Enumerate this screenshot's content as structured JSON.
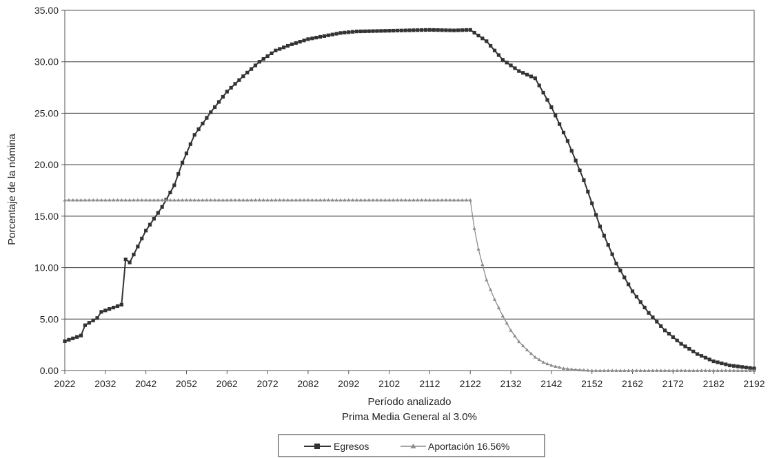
{
  "chart_data": {
    "type": "line",
    "xlabel": "Período analizado",
    "subtitle": "Prima Media General al 3.0%",
    "ylabel": "Porcentaje de la nómina",
    "xlim": [
      2022,
      2192
    ],
    "ylim": [
      0,
      35
    ],
    "x_ticks": [
      "2022",
      "2032",
      "2042",
      "2052",
      "2062",
      "2072",
      "2082",
      "2092",
      "2102",
      "2112",
      "2122",
      "2132",
      "2142",
      "2152",
      "2162",
      "2172",
      "2182",
      "2192"
    ],
    "y_ticks": [
      "0.00",
      "5.00",
      "10.00",
      "15.00",
      "20.00",
      "25.00",
      "30.00",
      "35.00"
    ],
    "grid": "horizontal",
    "legend_position": "bottom-center",
    "series": [
      {
        "name": "Egresos",
        "color": "#333333",
        "marker": "square",
        "points": [
          [
            2022,
            2.85
          ],
          [
            2026,
            3.4
          ],
          [
            2027,
            4.4
          ],
          [
            2030,
            5.1
          ],
          [
            2031,
            5.7
          ],
          [
            2036,
            6.4
          ],
          [
            2037,
            10.8
          ],
          [
            2038,
            10.5
          ],
          [
            2042,
            13.6
          ],
          [
            2046,
            15.9
          ],
          [
            2049,
            18.0
          ],
          [
            2051,
            20.2
          ],
          [
            2054,
            22.9
          ],
          [
            2058,
            25.1
          ],
          [
            2062,
            27.1
          ],
          [
            2066,
            28.6
          ],
          [
            2070,
            30.0
          ],
          [
            2074,
            31.1
          ],
          [
            2078,
            31.7
          ],
          [
            2082,
            32.2
          ],
          [
            2086,
            32.5
          ],
          [
            2090,
            32.8
          ],
          [
            2094,
            32.95
          ],
          [
            2100,
            33.0
          ],
          [
            2106,
            33.05
          ],
          [
            2112,
            33.1
          ],
          [
            2118,
            33.05
          ],
          [
            2122,
            33.1
          ],
          [
            2126,
            32.0
          ],
          [
            2130,
            30.2
          ],
          [
            2134,
            29.1
          ],
          [
            2138,
            28.4
          ],
          [
            2142,
            25.6
          ],
          [
            2146,
            22.3
          ],
          [
            2150,
            18.5
          ],
          [
            2154,
            14.0
          ],
          [
            2158,
            10.4
          ],
          [
            2162,
            7.7
          ],
          [
            2166,
            5.6
          ],
          [
            2170,
            3.9
          ],
          [
            2174,
            2.6
          ],
          [
            2178,
            1.6
          ],
          [
            2182,
            0.9
          ],
          [
            2186,
            0.5
          ],
          [
            2190,
            0.3
          ],
          [
            2192,
            0.2
          ]
        ]
      },
      {
        "name": "Aportación 16.56%",
        "color": "#8c8c8c",
        "marker": "triangle",
        "points": [
          [
            2022,
            16.56
          ],
          [
            2122,
            16.56
          ],
          [
            2123,
            13.8
          ],
          [
            2124,
            11.8
          ],
          [
            2125,
            10.3
          ],
          [
            2126,
            8.8
          ],
          [
            2128,
            6.9
          ],
          [
            2130,
            5.3
          ],
          [
            2132,
            3.9
          ],
          [
            2134,
            2.8
          ],
          [
            2136,
            2.0
          ],
          [
            2138,
            1.3
          ],
          [
            2140,
            0.8
          ],
          [
            2142,
            0.5
          ],
          [
            2145,
            0.2
          ],
          [
            2148,
            0.08
          ],
          [
            2152,
            0.0
          ],
          [
            2192,
            0.0
          ]
        ]
      }
    ]
  }
}
